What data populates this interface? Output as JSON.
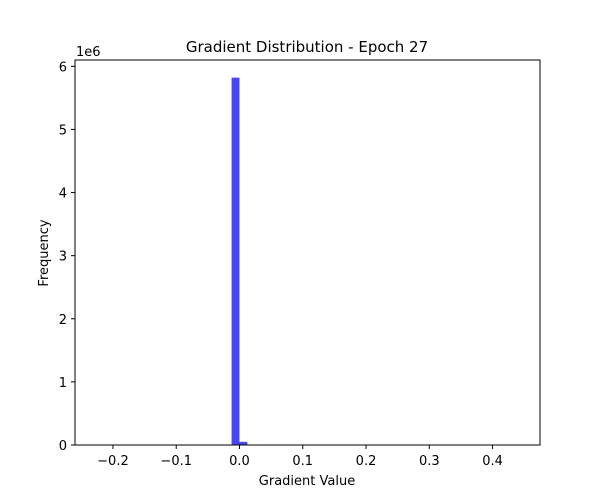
{
  "chart_data": {
    "type": "bar",
    "title": "Gradient Distribution - Epoch 27",
    "xlabel": "Gradient Value",
    "ylabel": "Frequency",
    "y_scale_label": "1e6",
    "xlim": [
      -0.26,
      0.475
    ],
    "ylim": [
      0,
      6.1
    ],
    "x_ticks": [
      -0.2,
      -0.1,
      0.0,
      0.1,
      0.2,
      0.3,
      0.4
    ],
    "x_tick_labels": [
      "−0.2",
      "−0.1",
      "0.0",
      "0.1",
      "0.2",
      "0.3",
      "0.4"
    ],
    "y_ticks": [
      0,
      1,
      2,
      3,
      4,
      5,
      6
    ],
    "y_tick_labels": [
      "0",
      "1",
      "2",
      "3",
      "4",
      "5",
      "6"
    ],
    "bar_color": "#4747f2",
    "grid": false,
    "bins": [
      {
        "x0": -0.0125,
        "x1": 0.0,
        "value": 5.82
      },
      {
        "x0": 0.0,
        "x1": 0.0125,
        "value": 0.05
      }
    ]
  }
}
